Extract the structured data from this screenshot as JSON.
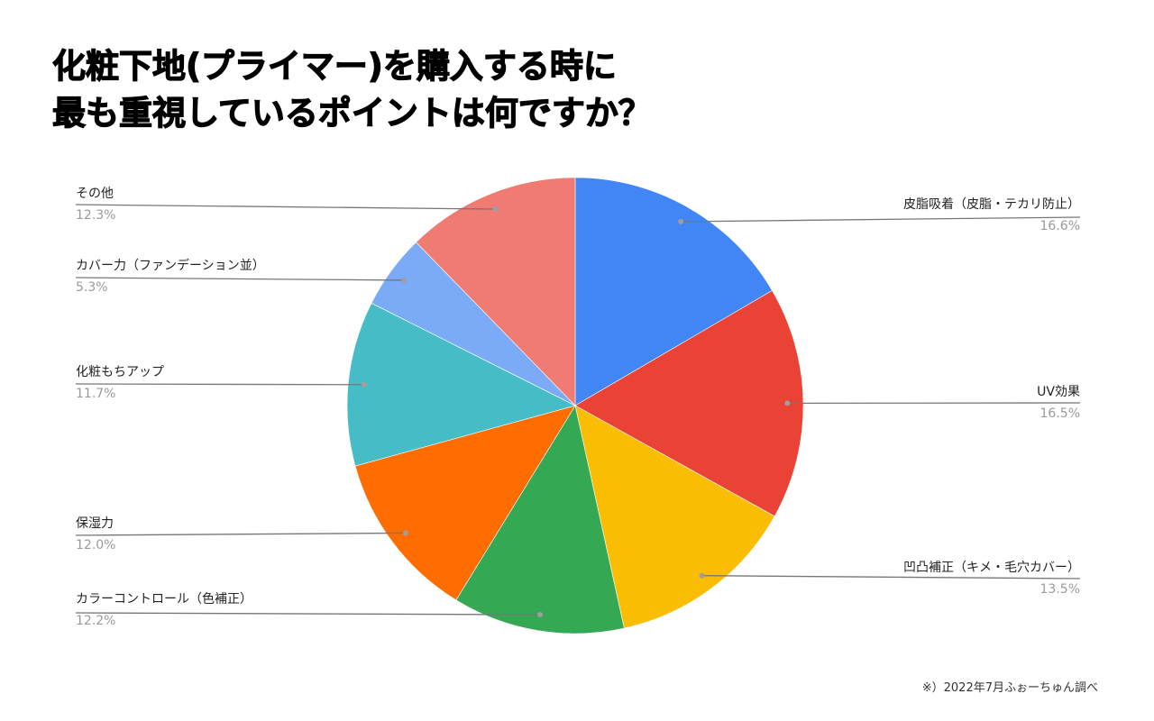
{
  "title": {
    "line1": "化粧下地(プライマー)を購入する時に",
    "line2": "最も重視しているポイントは何ですか？"
  },
  "footnote": "※）2022年7月ふぉーちゅん調べ",
  "chart_data": {
    "type": "pie",
    "title": "化粧下地(プライマー)を購入する時に最も重視しているポイントは何ですか？",
    "start_angle": "12 o'clock, clockwise",
    "legend_position": "labels with leader lines",
    "slices": [
      {
        "label": "皮脂吸着（皮脂・テカリ防止）",
        "value": 16.6,
        "display": "16.6%",
        "color": "#4285F4",
        "side": "right"
      },
      {
        "label": "UV効果",
        "value": 16.5,
        "display": "16.5%",
        "color": "#EA4335",
        "side": "right"
      },
      {
        "label": "凹凸補正（キメ・毛穴カバー）",
        "value": 13.5,
        "display": "13.5%",
        "color": "#FBBC04",
        "side": "right"
      },
      {
        "label": "カラーコントロール（色補正）",
        "value": 12.2,
        "display": "12.2%",
        "color": "#34A853",
        "side": "left"
      },
      {
        "label": "保湿力",
        "value": 12.0,
        "display": "12.0%",
        "color": "#FF6D01",
        "side": "left"
      },
      {
        "label": "化粧もちアップ",
        "value": 11.7,
        "display": "11.7%",
        "color": "#46BDC6",
        "side": "left"
      },
      {
        "label": "カバー力（ファンデーション並）",
        "value": 5.3,
        "display": "5.3%",
        "color": "#7BAAF7",
        "side": "left"
      },
      {
        "label": "その他",
        "value": 12.3,
        "display": "12.3%",
        "color": "#F07B72",
        "side": "left"
      }
    ]
  }
}
